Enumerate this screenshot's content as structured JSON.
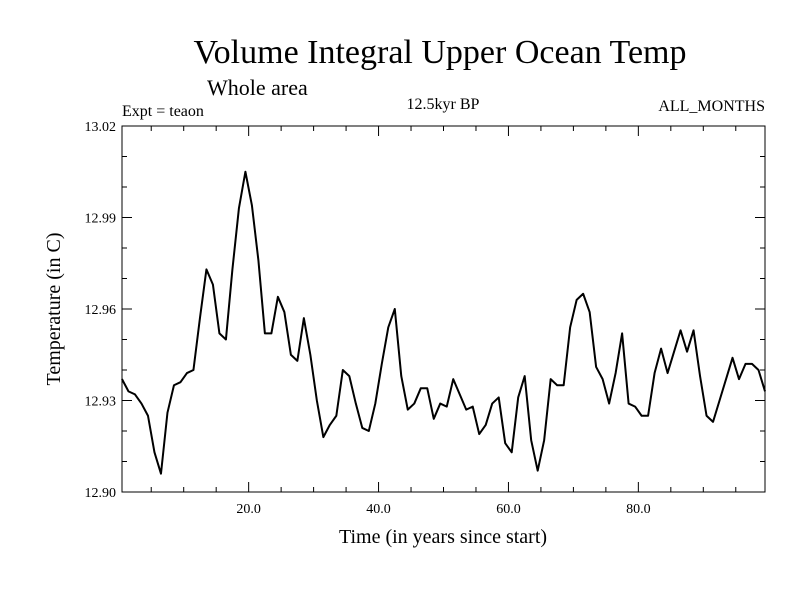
{
  "chart_data": {
    "type": "line",
    "title": "Volume Integral Upper Ocean Temp",
    "subtitle": "Whole area",
    "annotations": {
      "left": "Expt = teaon",
      "center": "12.5kyr BP",
      "right": "ALL_MONTHS"
    },
    "xlabel": "Time (in years since start)",
    "ylabel": "Temperature (in C)",
    "xlim": [
      0.5,
      99.5
    ],
    "ylim": [
      12.9,
      13.02
    ],
    "x_ticks": [
      20,
      40,
      60,
      80
    ],
    "x_tick_labels": [
      "20.0",
      "40.0",
      "60.0",
      "80.0"
    ],
    "y_ticks": [
      12.9,
      12.93,
      12.96,
      12.99,
      13.02
    ],
    "y_tick_labels": [
      "12.90",
      "12.93",
      "12.96",
      "12.99",
      "13.02"
    ],
    "grid": false,
    "series": [
      {
        "name": "Temperature",
        "x_start": 0.5,
        "x_step": 1,
        "values": [
          12.937,
          12.933,
          12.932,
          12.929,
          12.925,
          12.913,
          12.906,
          12.926,
          12.935,
          12.936,
          12.939,
          12.94,
          12.957,
          12.973,
          12.968,
          12.952,
          12.95,
          12.973,
          12.993,
          13.005,
          12.994,
          12.976,
          12.952,
          12.952,
          12.964,
          12.959,
          12.945,
          12.943,
          12.957,
          12.945,
          12.93,
          12.918,
          12.922,
          12.925,
          12.94,
          12.938,
          12.929,
          12.921,
          12.92,
          12.929,
          12.942,
          12.954,
          12.96,
          12.938,
          12.927,
          12.929,
          12.934,
          12.934,
          12.924,
          12.929,
          12.928,
          12.937,
          12.932,
          12.927,
          12.928,
          12.919,
          12.922,
          12.929,
          12.931,
          12.916,
          12.913,
          12.931,
          12.938,
          12.917,
          12.907,
          12.917,
          12.937,
          12.935,
          12.935,
          12.954,
          12.963,
          12.965,
          12.959,
          12.941,
          12.937,
          12.929,
          12.939,
          12.952,
          12.929,
          12.928,
          12.925,
          12.925,
          12.939,
          12.947,
          12.939,
          12.946,
          12.953,
          12.946,
          12.953,
          12.938,
          12.925,
          12.923,
          12.93,
          12.937,
          12.944,
          12.937,
          12.942,
          12.942,
          12.94,
          12.933
        ]
      }
    ]
  }
}
